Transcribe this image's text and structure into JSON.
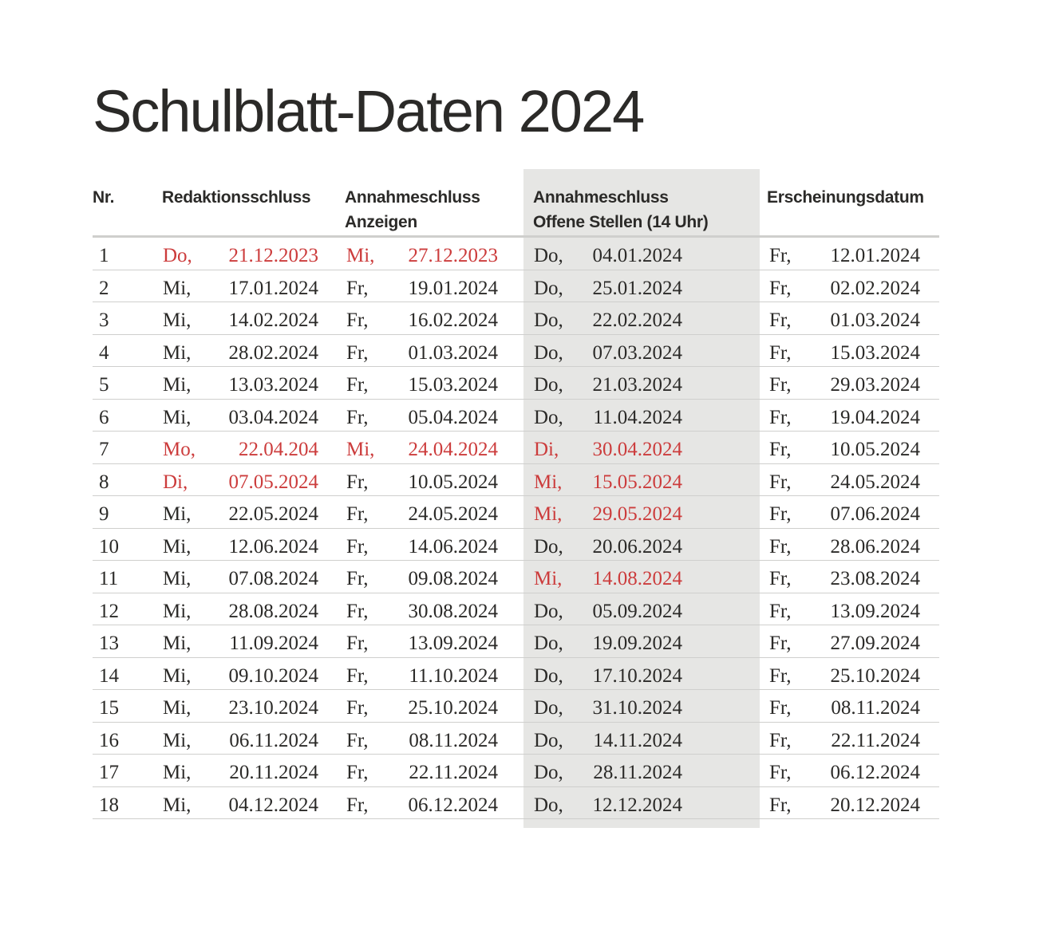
{
  "title": "Schulblatt-Daten 2024",
  "headers": {
    "nr": "Nr.",
    "redaktion": "Redaktionsschluss",
    "anzeigen_line1": "Annahmeschluss",
    "anzeigen_line2": "Anzeigen",
    "stellen_line1": "Annahmeschluss",
    "stellen_line2": "Offene Stellen (14 Uhr)",
    "erscheinung": "Erscheinungsdatum"
  },
  "colors": {
    "highlight": "#cc3c3c",
    "shaded_column": "#e6e6e4",
    "text": "#2b2a28"
  },
  "rows": [
    {
      "nr": "1",
      "red_day": "Do,",
      "red_date": "21.12.2023",
      "red_hl": true,
      "anz_day": "Mi,",
      "anz_date": "27.12.2023",
      "anz_hl": true,
      "off_day": "Do,",
      "off_date": "04.01.2024",
      "off_hl": false,
      "ers_day": "Fr,",
      "ers_date": "12.01.2024"
    },
    {
      "nr": "2",
      "red_day": "Mi,",
      "red_date": "17.01.2024",
      "red_hl": false,
      "anz_day": "Fr,",
      "anz_date": "19.01.2024",
      "anz_hl": false,
      "off_day": "Do,",
      "off_date": "25.01.2024",
      "off_hl": false,
      "ers_day": "Fr,",
      "ers_date": "02.02.2024"
    },
    {
      "nr": "3",
      "red_day": "Mi,",
      "red_date": "14.02.2024",
      "red_hl": false,
      "anz_day": "Fr,",
      "anz_date": "16.02.2024",
      "anz_hl": false,
      "off_day": "Do,",
      "off_date": "22.02.2024",
      "off_hl": false,
      "ers_day": "Fr,",
      "ers_date": "01.03.2024"
    },
    {
      "nr": "4",
      "red_day": "Mi,",
      "red_date": "28.02.2024",
      "red_hl": false,
      "anz_day": "Fr,",
      "anz_date": "01.03.2024",
      "anz_hl": false,
      "off_day": "Do,",
      "off_date": "07.03.2024",
      "off_hl": false,
      "ers_day": "Fr,",
      "ers_date": "15.03.2024"
    },
    {
      "nr": "5",
      "red_day": "Mi,",
      "red_date": "13.03.2024",
      "red_hl": false,
      "anz_day": "Fr,",
      "anz_date": "15.03.2024",
      "anz_hl": false,
      "off_day": "Do,",
      "off_date": "21.03.2024",
      "off_hl": false,
      "ers_day": "Fr,",
      "ers_date": "29.03.2024"
    },
    {
      "nr": "6",
      "red_day": "Mi,",
      "red_date": "03.04.2024",
      "red_hl": false,
      "anz_day": "Fr,",
      "anz_date": "05.04.2024",
      "anz_hl": false,
      "off_day": "Do,",
      "off_date": "11.04.2024",
      "off_hl": false,
      "ers_day": "Fr,",
      "ers_date": "19.04.2024"
    },
    {
      "nr": "7",
      "red_day": "Mo,",
      "red_date": "22.04.204",
      "red_hl": true,
      "anz_day": "Mi,",
      "anz_date": "24.04.2024",
      "anz_hl": true,
      "off_day": "Di,",
      "off_date": "30.04.2024",
      "off_hl": true,
      "ers_day": "Fr,",
      "ers_date": "10.05.2024"
    },
    {
      "nr": "8",
      "red_day": "Di,",
      "red_date": "07.05.2024",
      "red_hl": true,
      "anz_day": "Fr,",
      "anz_date": "10.05.2024",
      "anz_hl": false,
      "off_day": "Mi,",
      "off_date": "15.05.2024",
      "off_hl": true,
      "ers_day": "Fr,",
      "ers_date": "24.05.2024"
    },
    {
      "nr": "9",
      "red_day": "Mi,",
      "red_date": "22.05.2024",
      "red_hl": false,
      "anz_day": "Fr,",
      "anz_date": "24.05.2024",
      "anz_hl": false,
      "off_day": "Mi,",
      "off_date": "29.05.2024",
      "off_hl": true,
      "ers_day": "Fr,",
      "ers_date": "07.06.2024"
    },
    {
      "nr": "10",
      "red_day": "Mi,",
      "red_date": "12.06.2024",
      "red_hl": false,
      "anz_day": "Fr,",
      "anz_date": "14.06.2024",
      "anz_hl": false,
      "off_day": "Do,",
      "off_date": "20.06.2024",
      "off_hl": false,
      "ers_day": "Fr,",
      "ers_date": "28.06.2024"
    },
    {
      "nr": "11",
      "red_day": "Mi,",
      "red_date": "07.08.2024",
      "red_hl": false,
      "anz_day": "Fr,",
      "anz_date": "09.08.2024",
      "anz_hl": false,
      "off_day": "Mi,",
      "off_date": "14.08.2024",
      "off_hl": true,
      "ers_day": "Fr,",
      "ers_date": "23.08.2024"
    },
    {
      "nr": "12",
      "red_day": "Mi,",
      "red_date": "28.08.2024",
      "red_hl": false,
      "anz_day": "Fr,",
      "anz_date": "30.08.2024",
      "anz_hl": false,
      "off_day": "Do,",
      "off_date": "05.09.2024",
      "off_hl": false,
      "ers_day": "Fr,",
      "ers_date": "13.09.2024"
    },
    {
      "nr": "13",
      "red_day": "Mi,",
      "red_date": "11.09.2024",
      "red_hl": false,
      "anz_day": "Fr,",
      "anz_date": "13.09.2024",
      "anz_hl": false,
      "off_day": "Do,",
      "off_date": "19.09.2024",
      "off_hl": false,
      "ers_day": "Fr,",
      "ers_date": "27.09.2024"
    },
    {
      "nr": "14",
      "red_day": "Mi,",
      "red_date": "09.10.2024",
      "red_hl": false,
      "anz_day": "Fr,",
      "anz_date": "11.10.2024",
      "anz_hl": false,
      "off_day": "Do,",
      "off_date": "17.10.2024",
      "off_hl": false,
      "ers_day": "Fr,",
      "ers_date": "25.10.2024"
    },
    {
      "nr": "15",
      "red_day": "Mi,",
      "red_date": "23.10.2024",
      "red_hl": false,
      "anz_day": "Fr,",
      "anz_date": "25.10.2024",
      "anz_hl": false,
      "off_day": "Do,",
      "off_date": "31.10.2024",
      "off_hl": false,
      "ers_day": "Fr,",
      "ers_date": "08.11.2024"
    },
    {
      "nr": "16",
      "red_day": "Mi,",
      "red_date": "06.11.2024",
      "red_hl": false,
      "anz_day": "Fr,",
      "anz_date": "08.11.2024",
      "anz_hl": false,
      "off_day": "Do,",
      "off_date": "14.11.2024",
      "off_hl": false,
      "ers_day": "Fr,",
      "ers_date": "22.11.2024"
    },
    {
      "nr": "17",
      "red_day": "Mi,",
      "red_date": "20.11.2024",
      "red_hl": false,
      "anz_day": "Fr,",
      "anz_date": "22.11.2024",
      "anz_hl": false,
      "off_day": "Do,",
      "off_date": "28.11.2024",
      "off_hl": false,
      "ers_day": "Fr,",
      "ers_date": "06.12.2024"
    },
    {
      "nr": "18",
      "red_day": "Mi,",
      "red_date": "04.12.2024",
      "red_hl": false,
      "anz_day": "Fr,",
      "anz_date": "06.12.2024",
      "anz_hl": false,
      "off_day": "Do,",
      "off_date": "12.12.2024",
      "off_hl": false,
      "ers_day": "Fr,",
      "ers_date": "20.12.2024"
    }
  ]
}
